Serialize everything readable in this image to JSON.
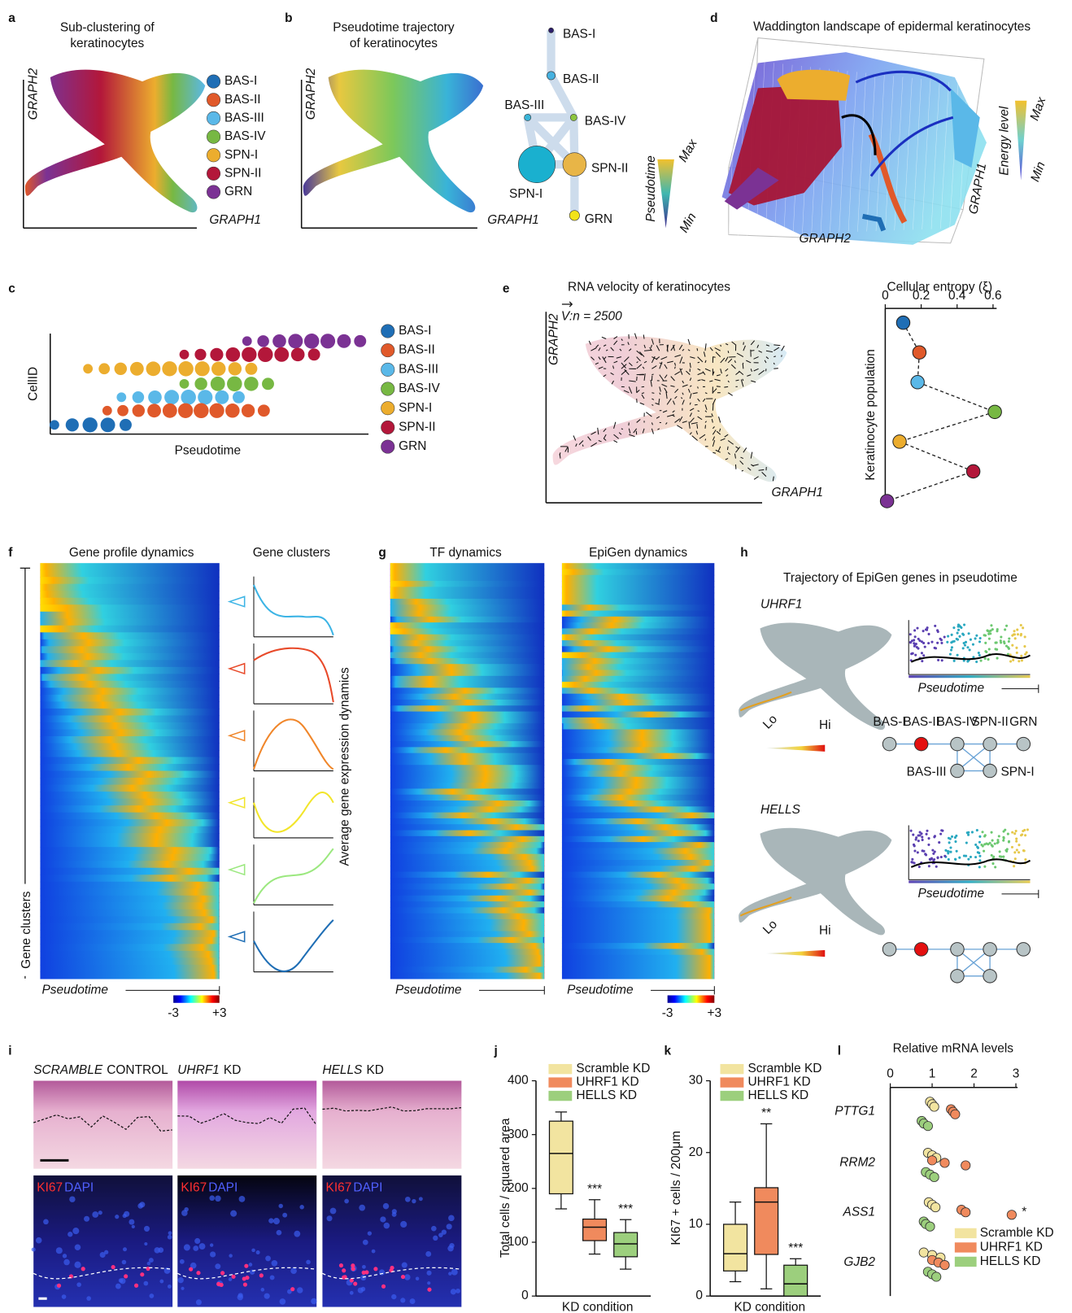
{
  "panels": {
    "labels": [
      "a",
      "b",
      "c",
      "d",
      "e",
      "f",
      "g",
      "h",
      "i",
      "j",
      "k",
      "l"
    ],
    "clusters": [
      {
        "name": "BAS-I",
        "color": "#1f6eb5"
      },
      {
        "name": "BAS-II",
        "color": "#e0592a"
      },
      {
        "name": "BAS-III",
        "color": "#5ab8e8"
      },
      {
        "name": "BAS-IV",
        "color": "#77b843"
      },
      {
        "name": "SPN-I",
        "color": "#ecad2e"
      },
      {
        "name": "SPN-II",
        "color": "#b3173a"
      },
      {
        "name": "GRN",
        "color": "#7b3294"
      }
    ],
    "a": {
      "title": [
        "Sub-clustering of",
        "keratinocytes"
      ],
      "xlabel": "GRAPH1",
      "ylabel": "GRAPH2"
    },
    "b": {
      "title": [
        "Pseudotime trajectory",
        "of keratinocytes"
      ],
      "xlabel": "GRAPH1",
      "ylabel": "GRAPH2",
      "scale_label": "Pseudotime",
      "max": "Max",
      "min": "Min"
    },
    "c": {
      "ylabel": "CellID",
      "xlabel": "Pseudotime"
    },
    "d": {
      "title": "Waddington landscape of epidermal keratinocytes",
      "scale_label": "Energy level",
      "max": "Max",
      "min": "Min",
      "xlabel": "GRAPH2",
      "ylabel": "GRAPH1"
    },
    "e": {
      "title": "RNA velocity of keratinocytes",
      "note": "V:n = 2500",
      "xlabel": "GRAPH1",
      "ylabel": "GRAPH2"
    },
    "f": {
      "title": "Gene profile dynamics",
      "clusters_title": "Gene clusters",
      "side_label": "Gene clusters",
      "xlabel": "Pseudotime",
      "scale": [
        "-3",
        "+3"
      ],
      "avg_label": "Average gene expression dynamics"
    },
    "g": {
      "titles": [
        "TF dynamics",
        "EpiGen dynamics"
      ],
      "xlabel": "Pseudotime",
      "scale": [
        "-3",
        "+3"
      ]
    },
    "h": {
      "title": "Trajectory of EpiGen genes in pseudotime",
      "genes": [
        "UHRF1",
        "HELLS"
      ],
      "lo": "Lo",
      "hi": "Hi",
      "xlabel": "Pseudotime"
    },
    "i": {
      "conditions": [
        {
          "gene": "SCRAMBLE",
          "suffix": "CONTROL"
        },
        {
          "gene": "UHRF1",
          "suffix": "KD"
        },
        {
          "gene": "HELLS",
          "suffix": "KD"
        }
      ],
      "stain": [
        "KI67",
        "DAPI"
      ]
    }
  },
  "chart_data": [
    {
      "type": "dot",
      "title": "Cellular entropy (ξ)",
      "ylabel": "Keratinocyte population",
      "xlim": [
        0,
        0.62
      ],
      "xticks": [
        0,
        0.2,
        0.4,
        0.6
      ],
      "values": [
        0.1,
        0.19,
        0.18,
        0.61,
        0.08,
        0.49,
        0.01
      ],
      "colors": [
        "#1f6eb5",
        "#e0592a",
        "#5ab8e8",
        "#77b843",
        "#ecad2e",
        "#b3173a",
        "#7b3294"
      ]
    },
    {
      "type": "box",
      "ylabel": "Total cells / squared area",
      "xlabel": "KD condition",
      "ylim": [
        0,
        400
      ],
      "yticks": [
        0,
        100,
        200,
        300,
        400
      ],
      "series": [
        {
          "name": "Scramble KD",
          "color": "#f2e4a0",
          "min": 162,
          "q1": 190,
          "median": 265,
          "q3": 325,
          "max": 342
        },
        {
          "name": "UHRF1 KD",
          "color": "#f08a5d",
          "min": 78,
          "q1": 103,
          "median": 128,
          "q3": 143,
          "max": 179,
          "annotation": "***"
        },
        {
          "name": "HELLS KD",
          "color": "#9ccf7d",
          "min": 50,
          "q1": 73,
          "median": 97,
          "q3": 118,
          "max": 142,
          "annotation": "***"
        }
      ]
    },
    {
      "type": "box",
      "ylabel": "KI67 + cells / 200μm",
      "xlabel": "KD condition",
      "ylim": [
        0,
        30
      ],
      "yticks": [
        0,
        10,
        20,
        30
      ],
      "series": [
        {
          "name": "Scramble KD",
          "color": "#f2e4a0",
          "min": 2,
          "q1": 3.5,
          "median": 5.9,
          "q3": 10,
          "max": 13.1
        },
        {
          "name": "UHRF1 KD",
          "color": "#f08a5d",
          "min": 1,
          "q1": 5.8,
          "median": 13.1,
          "q3": 15.1,
          "max": 24,
          "annotation": "**"
        },
        {
          "name": "HELLS KD",
          "color": "#9ccf7d",
          "min": 0,
          "q1": 0,
          "median": 1.7,
          "q3": 4.3,
          "max": 5.2,
          "annotation": "***"
        }
      ]
    },
    {
      "type": "strip",
      "title": "Relative mRNA levels",
      "xlim": [
        0,
        3
      ],
      "xticks": [
        0,
        1,
        2,
        3
      ],
      "categories": [
        "PTTG1",
        "RRM2",
        "ASS1",
        "GJB2"
      ],
      "series": [
        {
          "name": "Scramble KD",
          "color": "#f2e4a0",
          "values": [
            [
              0.95,
              1.0,
              1.05
            ],
            [
              0.9,
              1.0,
              1.1
            ],
            [
              0.92,
              1.0,
              1.08
            ],
            [
              0.8,
              1.0,
              1.2
            ]
          ]
        },
        {
          "name": "UHRF1 KD",
          "color": "#f08a5d",
          "values": [
            [
              1.45,
              1.5,
              1.55
            ],
            [
              1.0,
              1.3,
              1.8
            ],
            [
              1.7,
              1.8,
              2.9
            ],
            [
              1.0,
              1.15,
              1.3
            ]
          ],
          "annotations": [
            null,
            null,
            "*",
            null
          ]
        },
        {
          "name": "HELLS KD",
          "color": "#9ccf7d",
          "values": [
            [
              0.75,
              0.8,
              0.9
            ],
            [
              0.85,
              0.95,
              1.05
            ],
            [
              0.8,
              0.85,
              0.95
            ],
            [
              0.9,
              1.0,
              1.1
            ]
          ]
        }
      ]
    }
  ]
}
